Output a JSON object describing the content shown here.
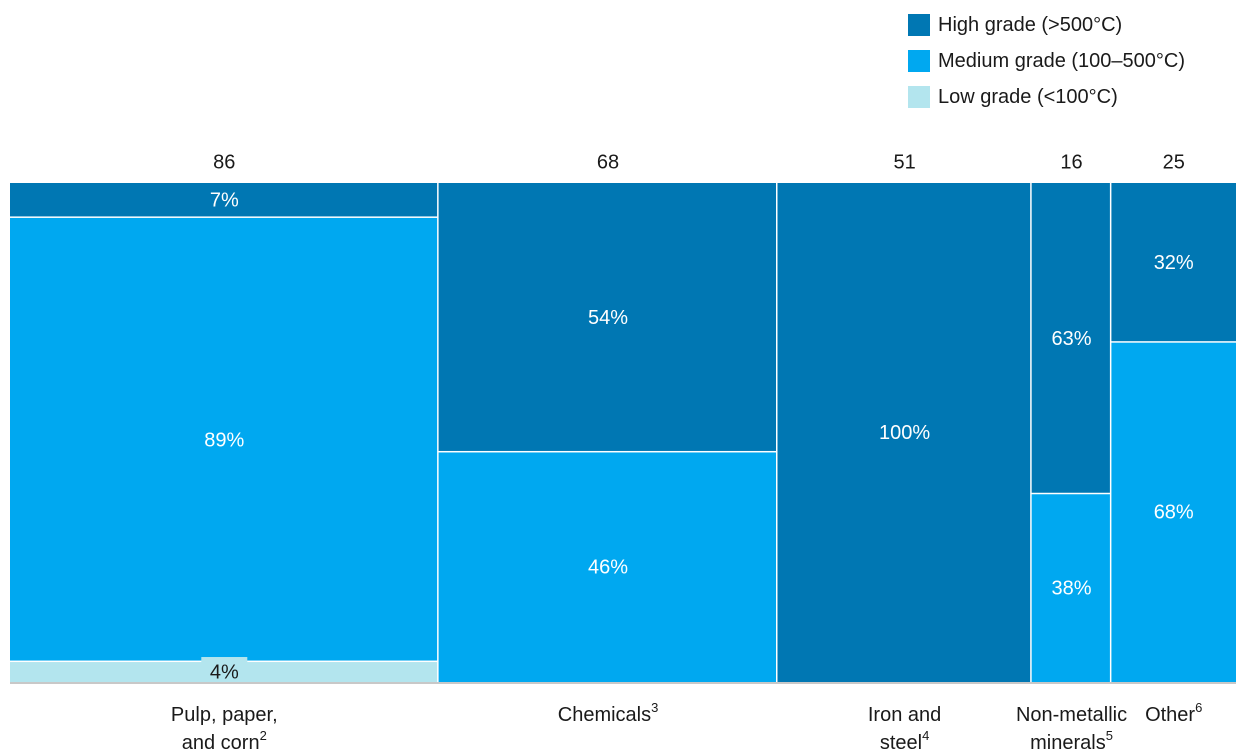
{
  "chart_data": {
    "type": "mekko",
    "categories": [
      {
        "label_lines": [
          "Pulp, paper,",
          "and corn"
        ],
        "footnote": "2",
        "total": 86,
        "segments": {
          "high": 7,
          "medium": 89,
          "low": 4
        }
      },
      {
        "label_lines": [
          "Chemicals"
        ],
        "footnote": "3",
        "total": 68,
        "segments": {
          "high": 54,
          "medium": 46
        }
      },
      {
        "label_lines": [
          "Iron and",
          "steel"
        ],
        "footnote": "4",
        "total": 51,
        "segments": {
          "high": 100
        }
      },
      {
        "label_lines": [
          "Non-metallic",
          "minerals"
        ],
        "footnote": "5",
        "total": 16,
        "segments": {
          "high": 63,
          "medium": 38
        }
      },
      {
        "label_lines": [
          "Other"
        ],
        "footnote": "6",
        "total": 25,
        "segments": {
          "high": 32,
          "medium": 68
        }
      }
    ],
    "series": [
      {
        "key": "high",
        "name": "High grade (>500°C)",
        "color": "#0077b3"
      },
      {
        "key": "medium",
        "name": "Medium grade (100–500°C)",
        "color": "#00a8f0"
      },
      {
        "key": "low",
        "name": "Low grade (<100°C)",
        "color": "#b3e5ee"
      }
    ],
    "value_format": "percent",
    "legend_position": "top-right"
  }
}
